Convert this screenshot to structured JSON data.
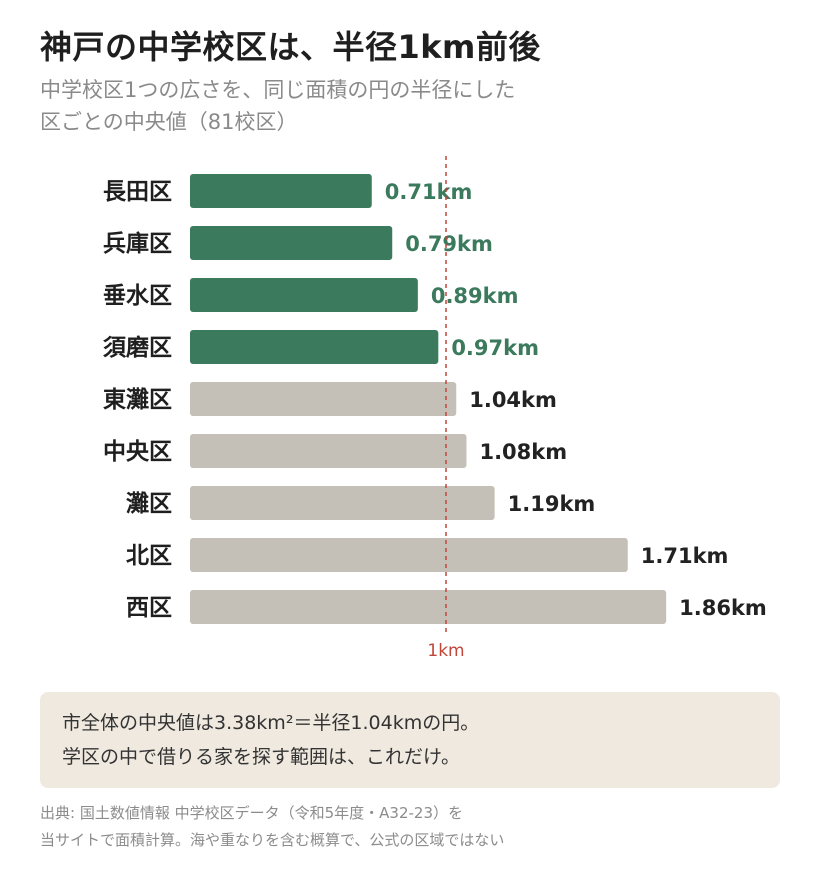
{
  "title": "神戸の中学校区は、半径1km前後",
  "subtitle_lines": [
    "中学校区1つの広さを、同じ面積の円の半径にした",
    "区ごとの中央値（81校区）"
  ],
  "colors": {
    "highlight": "#3b7a5c",
    "normal": "#c4c0b8",
    "reference": "#c0463a",
    "note_bg": "#efe9df"
  },
  "chart_data": {
    "type": "bar",
    "orientation": "horizontal",
    "title": "神戸の中学校区は、半径1km前後",
    "categories": [
      "長田区",
      "兵庫区",
      "垂水区",
      "須磨区",
      "東灘区",
      "中央区",
      "灘区",
      "北区",
      "西区"
    ],
    "values": [
      0.71,
      0.79,
      0.89,
      0.97,
      1.04,
      1.08,
      1.19,
      1.71,
      1.86
    ],
    "value_labels": [
      "0.71km",
      "0.79km",
      "0.89km",
      "0.97km",
      "1.04km",
      "1.08km",
      "1.19km",
      "1.71km",
      "1.86km"
    ],
    "highlighted": [
      true,
      true,
      true,
      true,
      false,
      false,
      false,
      false,
      false
    ],
    "reference_line": {
      "value": 1.0,
      "label": "1km"
    },
    "xlim": [
      0,
      2.0
    ],
    "xlabel": "",
    "ylabel": "",
    "grid": false,
    "legend": "none"
  },
  "note": {
    "lines": [
      "市全体の中央値は3.38km²＝半径1.04kmの円。",
      "学区の中で借りる家を探す範囲は、これだけ。"
    ]
  },
  "source_lines": [
    "出典: 国土数値情報 中学校区データ（令和5年度・A32-23）を",
    "当サイトで面積計算。海や重なりを含む概算で、公式の区域ではない"
  ]
}
